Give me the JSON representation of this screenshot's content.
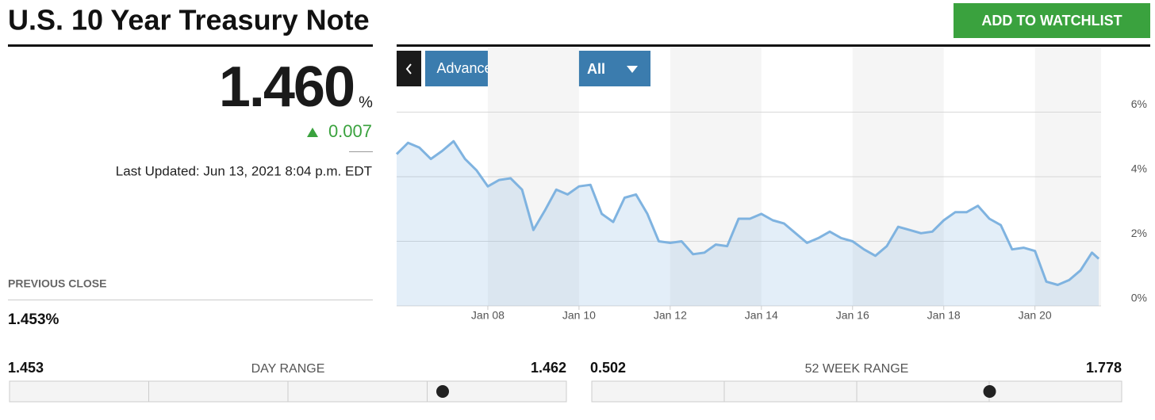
{
  "header": {
    "title": "U.S. 10 Year Treasury Note",
    "button": "ADD TO WATCHLIST"
  },
  "quote": {
    "price": "1.460",
    "unit": "%",
    "change": "0.007",
    "updated": "Last Updated: Jun 13, 2021 8:04 p.m. EDT",
    "previous_close_label": "PREVIOUS CLOSE",
    "previous_close": "1.453%"
  },
  "ranges": [
    {
      "low": "1.453",
      "label": "DAY RANGE",
      "high": "1.462"
    },
    {
      "low": "0.502",
      "label": "52 WEEK RANGE",
      "high": "1.778"
    }
  ],
  "controls": {
    "advanced": "Advanced Charting",
    "period": "All"
  },
  "chart_data": {
    "type": "line",
    "x": [
      2006.0,
      2006.25,
      2006.5,
      2006.75,
      2007.0,
      2007.25,
      2007.5,
      2007.75,
      2008.0,
      2008.25,
      2008.5,
      2008.75,
      2009.0,
      2009.25,
      2009.5,
      2009.75,
      2010.0,
      2010.25,
      2010.5,
      2010.75,
      2011.0,
      2011.25,
      2011.5,
      2011.75,
      2012.0,
      2012.25,
      2012.5,
      2012.75,
      2013.0,
      2013.25,
      2013.5,
      2013.75,
      2014.0,
      2014.25,
      2014.5,
      2014.75,
      2015.0,
      2015.25,
      2015.5,
      2015.75,
      2016.0,
      2016.25,
      2016.5,
      2016.75,
      2017.0,
      2017.25,
      2017.5,
      2017.75,
      2018.0,
      2018.25,
      2018.5,
      2018.75,
      2019.0,
      2019.25,
      2019.5,
      2019.75,
      2020.0,
      2020.25,
      2020.5,
      2020.75,
      2021.0,
      2021.25,
      2021.4
    ],
    "series": [
      {
        "color": "#7fb3e0",
        "values": [
          4.7,
          5.05,
          4.9,
          4.55,
          4.8,
          5.1,
          4.55,
          4.2,
          3.7,
          3.9,
          3.95,
          3.6,
          2.35,
          2.95,
          3.6,
          3.45,
          3.7,
          3.75,
          2.85,
          2.6,
          3.35,
          3.45,
          2.85,
          2.0,
          1.95,
          2.0,
          1.6,
          1.65,
          1.9,
          1.85,
          2.7,
          2.7,
          2.85,
          2.65,
          2.55,
          2.25,
          1.95,
          2.1,
          2.3,
          2.1,
          2.0,
          1.75,
          1.55,
          1.85,
          2.45,
          2.35,
          2.25,
          2.3,
          2.65,
          2.9,
          2.9,
          3.1,
          2.7,
          2.5,
          1.75,
          1.8,
          1.7,
          0.75,
          0.65,
          0.8,
          1.1,
          1.65,
          1.46
        ]
      }
    ],
    "xlim": [
      2006.0,
      2021.45
    ],
    "xticks": [
      {
        "value": 2008,
        "label": "Jan 08"
      },
      {
        "value": 2010,
        "label": "Jan 10"
      },
      {
        "value": 2012,
        "label": "Jan 12"
      },
      {
        "value": 2014,
        "label": "Jan 14"
      },
      {
        "value": 2016,
        "label": "Jan 16"
      },
      {
        "value": 2018,
        "label": "Jan 18"
      },
      {
        "value": 2020,
        "label": "Jan 20"
      }
    ],
    "ylim": [
      0,
      8
    ],
    "yticks": [
      {
        "value": 0,
        "label": "0%"
      },
      {
        "value": 2,
        "label": "2%"
      },
      {
        "value": 4,
        "label": "4%"
      },
      {
        "value": 6,
        "label": "6%"
      }
    ],
    "grid": true
  }
}
